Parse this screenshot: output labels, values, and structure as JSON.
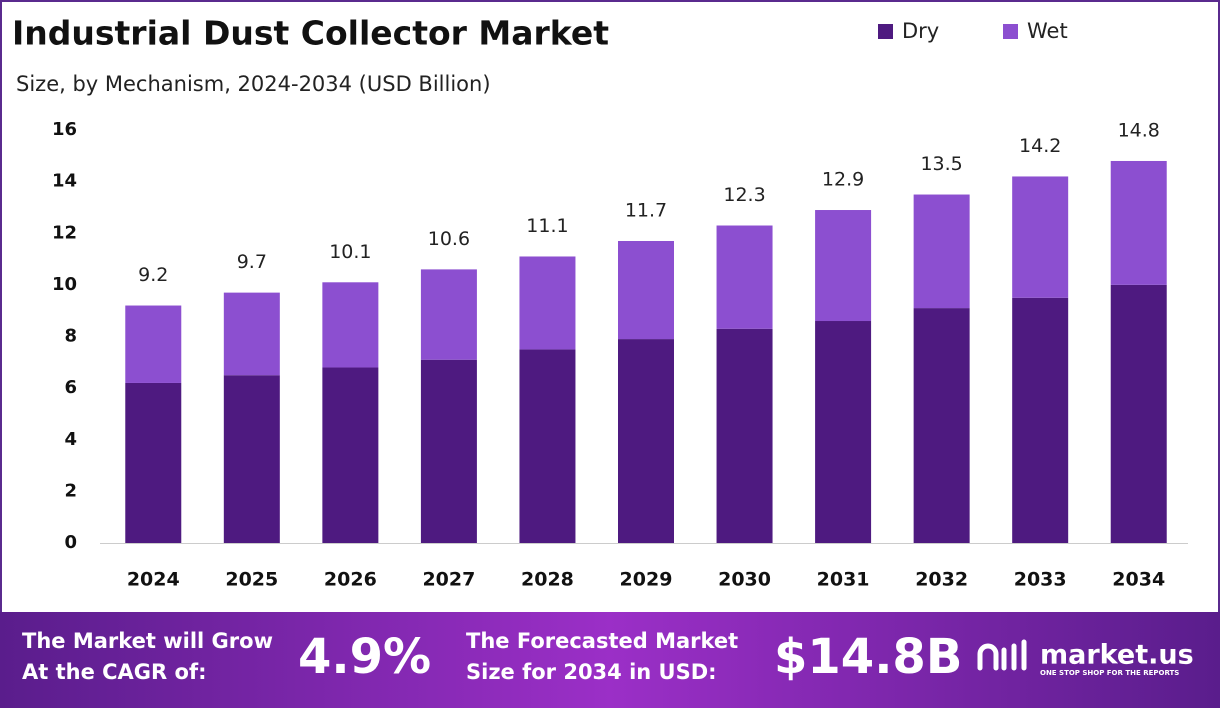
{
  "chart_data": {
    "type": "stacked-bar",
    "title": "Industrial Dust Collector Market",
    "subtitle": "Size, by Mechanism, 2024-2034 (USD Billion)",
    "categories": [
      "2024",
      "2025",
      "2026",
      "2027",
      "2028",
      "2029",
      "2030",
      "2031",
      "2032",
      "2033",
      "2034"
    ],
    "series": [
      {
        "name": "Dry",
        "color": "#4e1a80",
        "values": [
          6.2,
          6.5,
          6.8,
          7.1,
          7.5,
          7.9,
          8.3,
          8.6,
          9.1,
          9.5,
          10.0
        ]
      },
      {
        "name": "Wet",
        "color": "#8c4fd0",
        "values": [
          3.0,
          3.2,
          3.3,
          3.5,
          3.6,
          3.8,
          4.0,
          4.3,
          4.4,
          4.7,
          4.8
        ]
      }
    ],
    "totals": [
      9.2,
      9.7,
      10.1,
      10.6,
      11.1,
      11.7,
      12.3,
      12.9,
      13.5,
      14.2,
      14.8
    ],
    "ylim": [
      0,
      16
    ],
    "yticks": [
      0,
      2,
      4,
      6,
      8,
      10,
      12,
      14,
      16
    ],
    "grid": false,
    "legend": "top-right"
  },
  "footer": {
    "cagr_text": [
      "The Market will Grow",
      "At the CAGR of:"
    ],
    "cagr_value": "4.9%",
    "forecast_text": [
      "The Forecasted Market",
      "Size for 2034 in USD:"
    ],
    "forecast_value": "$14.8B",
    "brand": "market.us",
    "tagline": "ONE STOP SHOP FOR THE REPORTS"
  }
}
